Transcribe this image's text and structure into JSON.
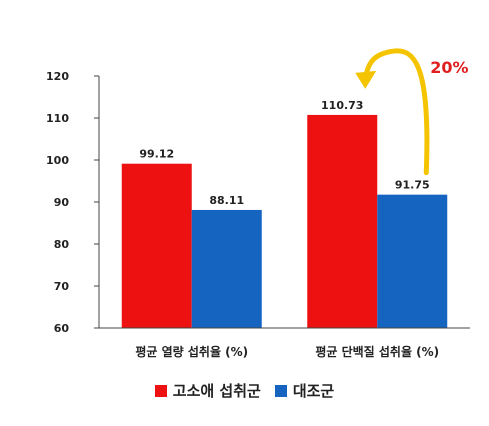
{
  "chart_data": {
    "type": "bar",
    "categories": [
      "평균 열량 섭취율 (%)",
      "평균 단백질 섭취율 (%)"
    ],
    "series": [
      {
        "name": "고소애 섭취군",
        "color": "#ee1111",
        "values": [
          99.12,
          110.73
        ],
        "labels": [
          "99.12",
          "110.73"
        ]
      },
      {
        "name": "대조군",
        "color": "#1565c0",
        "values": [
          88.11,
          91.75
        ],
        "labels": [
          "88.11",
          "91.75"
        ]
      }
    ],
    "ylim": [
      60,
      120
    ],
    "yticks": [
      60,
      70,
      80,
      90,
      100,
      110,
      120
    ],
    "grid": false,
    "legend_position": "bottom",
    "annotation": {
      "text": "20%",
      "color": "#e02020",
      "arrow_color": "#f5c400"
    }
  }
}
